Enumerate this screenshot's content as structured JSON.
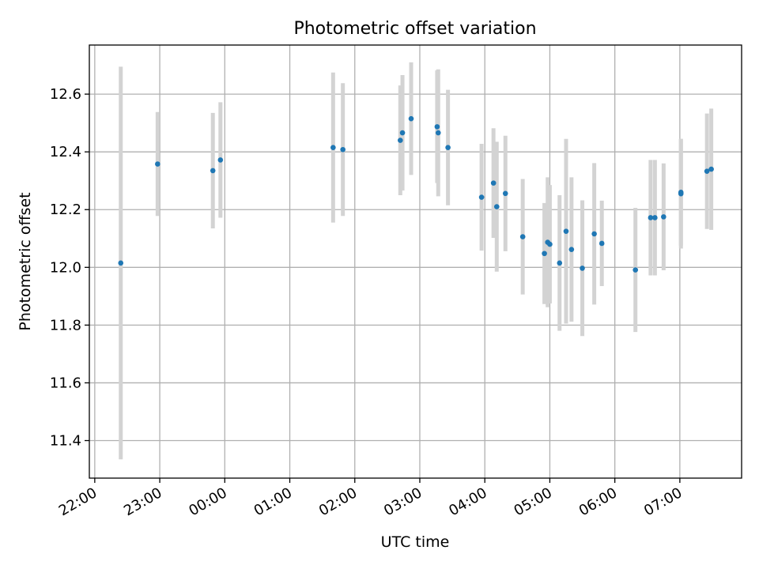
{
  "chart_data": {
    "type": "scatter",
    "title": "Photometric offset variation",
    "xlabel": "UTC time",
    "ylabel": "Photometric offset",
    "x_axis_kind": "time",
    "xlim": [
      "21:55",
      "07:57"
    ],
    "ylim": [
      11.27,
      12.77
    ],
    "grid": true,
    "x_ticks": [
      "22:00",
      "23:00",
      "00:00",
      "01:00",
      "02:00",
      "03:00",
      "04:00",
      "05:00",
      "06:00",
      "07:00"
    ],
    "y_ticks": [
      "11.4",
      "11.6",
      "11.8",
      "12.0",
      "12.2",
      "12.4",
      "12.6"
    ],
    "series": [
      {
        "point_color": "#1f77b4",
        "errorbar_color": "#d3d3d3",
        "points": [
          {
            "x": "22:24",
            "y": 12.015,
            "err": 0.68
          },
          {
            "x": "22:58",
            "y": 12.358,
            "err": 0.18
          },
          {
            "x": "23:49",
            "y": 12.335,
            "err": 0.2
          },
          {
            "x": "23:56",
            "y": 12.372,
            "err": 0.2
          },
          {
            "x": "01:40",
            "y": 12.415,
            "err": 0.26
          },
          {
            "x": "01:49",
            "y": 12.408,
            "err": 0.23
          },
          {
            "x": "02:42",
            "y": 12.44,
            "err": 0.19
          },
          {
            "x": "02:44",
            "y": 12.466,
            "err": 0.2
          },
          {
            "x": "02:52",
            "y": 12.515,
            "err": 0.195
          },
          {
            "x": "03:16",
            "y": 12.487,
            "err": 0.195
          },
          {
            "x": "03:17",
            "y": 12.466,
            "err": 0.22
          },
          {
            "x": "03:26",
            "y": 12.415,
            "err": 0.2
          },
          {
            "x": "03:57",
            "y": 12.243,
            "err": 0.185
          },
          {
            "x": "04:08",
            "y": 12.292,
            "err": 0.19
          },
          {
            "x": "04:11",
            "y": 12.21,
            "err": 0.225
          },
          {
            "x": "04:19",
            "y": 12.256,
            "err": 0.2
          },
          {
            "x": "04:35",
            "y": 12.106,
            "err": 0.2
          },
          {
            "x": "04:55",
            "y": 12.048,
            "err": 0.175
          },
          {
            "x": "04:58",
            "y": 12.087,
            "err": 0.225
          },
          {
            "x": "05:00",
            "y": 12.08,
            "err": 0.205
          },
          {
            "x": "05:09",
            "y": 12.015,
            "err": 0.235
          },
          {
            "x": "05:15",
            "y": 12.125,
            "err": 0.32
          },
          {
            "x": "05:20",
            "y": 12.062,
            "err": 0.25
          },
          {
            "x": "05:30",
            "y": 11.997,
            "err": 0.235
          },
          {
            "x": "05:41",
            "y": 12.116,
            "err": 0.245
          },
          {
            "x": "05:48",
            "y": 12.083,
            "err": 0.148
          },
          {
            "x": "06:19",
            "y": 11.991,
            "err": 0.215
          },
          {
            "x": "06:33",
            "y": 12.172,
            "err": 0.2
          },
          {
            "x": "06:37",
            "y": 12.172,
            "err": 0.2
          },
          {
            "x": "06:45",
            "y": 12.175,
            "err": 0.185
          },
          {
            "x": "07:01",
            "y": 12.255,
            "err": 0.19
          },
          {
            "x": "07:01",
            "y": 12.26,
            "err": 0.185
          },
          {
            "x": "07:25",
            "y": 12.333,
            "err": 0.2
          },
          {
            "x": "07:29",
            "y": 12.34,
            "err": 0.21
          }
        ]
      }
    ]
  }
}
